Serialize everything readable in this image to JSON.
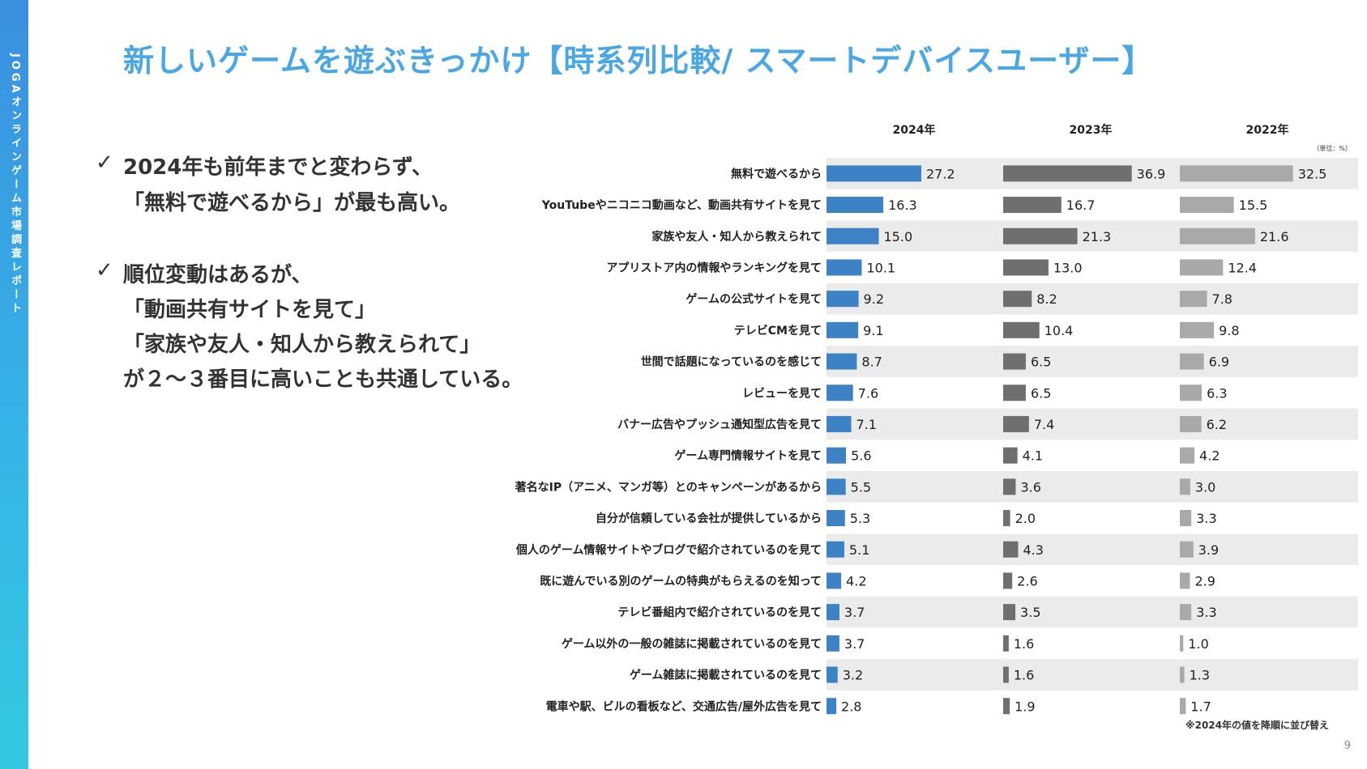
{
  "sidebar": {
    "text": "JOGAオンラインゲーム市場調査レポート"
  },
  "title": "新しいゲームを遊ぶきっかけ【時系列比較/ スマートデバイスユーザー】",
  "bullets": [
    {
      "mark": "✓",
      "lines": [
        "2024年も前年までと変わらず、",
        "「無料で遊べるから」が最も高い。"
      ]
    },
    {
      "mark": "✓",
      "lines": [
        "順位変動はあるが、",
        "「動画共有サイトを見て」",
        "「家族や友人・知人から教えられて」",
        "が２～３番目に高いことも共通している。"
      ]
    }
  ],
  "page_number": "9",
  "chart_data": {
    "type": "bar",
    "orientation": "horizontal",
    "panels": [
      "2024年",
      "2023年",
      "2022年"
    ],
    "unit_note": "（単位：%）",
    "footnote": "※2024年の値を降順に並び替え",
    "colors": {
      "2024年": "#3c82c4",
      "2023年": "#6f6f6f",
      "2022年": "#a9a9a9",
      "row_stripe": "#ebebeb"
    },
    "categories": [
      "無料で遊べるから",
      "YouTubeやニコニコ動画など、動画共有サイトを見て",
      "家族や友人・知人から教えられて",
      "アプリストア内の情報やランキングを見て",
      "ゲームの公式サイトを見て",
      "テレビCMを見て",
      "世間で話題になっているのを感じて",
      "レビューを見て",
      "バナー広告やプッシュ通知型広告を見て",
      "ゲーム専門情報サイトを見て",
      "著名なIP（アニメ、マンガ等）とのキャンペーンがあるから",
      "自分が信頼している会社が提供しているから",
      "個人のゲーム情報サイトやブログで紹介されているのを見て",
      "既に遊んでいる別のゲームの特典がもらえるのを知って",
      "テレビ番組内で紹介されているのを見て",
      "ゲーム以外の一般の雑誌に掲載されているのを見て",
      "ゲーム雑誌に掲載されているのを見て",
      "電車や駅、ビルの看板など、交通広告/屋外広告を見て"
    ],
    "series": [
      {
        "name": "2024年",
        "values": [
          27.2,
          16.3,
          15.0,
          10.1,
          9.2,
          9.1,
          8.7,
          7.6,
          7.1,
          5.6,
          5.5,
          5.3,
          5.1,
          4.2,
          3.7,
          3.7,
          3.2,
          2.8
        ]
      },
      {
        "name": "2023年",
        "values": [
          36.9,
          16.7,
          21.3,
          13.0,
          8.2,
          10.4,
          6.5,
          6.5,
          7.4,
          4.1,
          3.6,
          2.0,
          4.3,
          2.6,
          3.5,
          1.6,
          1.6,
          1.9
        ]
      },
      {
        "name": "2022年",
        "values": [
          32.5,
          15.5,
          21.6,
          12.4,
          7.8,
          9.8,
          6.9,
          6.3,
          6.2,
          4.2,
          3.0,
          3.3,
          3.9,
          2.9,
          3.3,
          1.0,
          1.3,
          1.7
        ]
      }
    ],
    "xlim": [
      0,
      40
    ],
    "value_labels": true,
    "grid": false
  }
}
